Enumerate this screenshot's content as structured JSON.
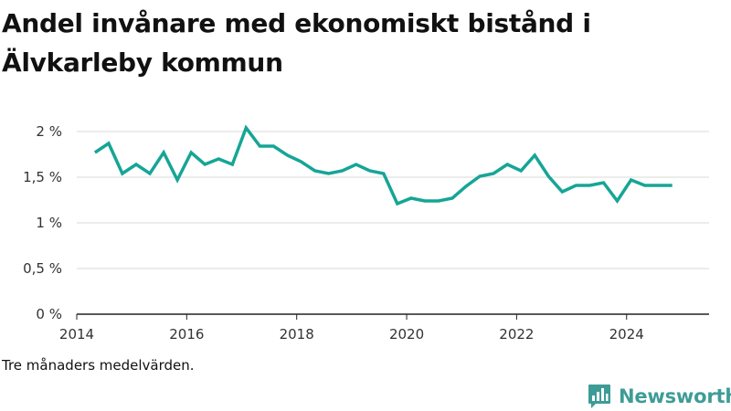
{
  "title": "Andel invånare med ekonomiskt bistånd i Älvkarleby kommun",
  "note": "Tre månaders medelvärden.",
  "brand": {
    "name": "Newsworthy",
    "color": "#3e9c96",
    "icon": "bar-chart-icon"
  },
  "colors": {
    "line": "#16a596",
    "grid": "#d9d9d9",
    "axis": "#222222"
  },
  "chart_data": {
    "type": "line",
    "title": "Andel invånare med ekonomiskt bistånd i Älvkarleby kommun",
    "xlabel": "",
    "ylabel": "",
    "xlim": [
      2014.0,
      2025.5
    ],
    "ylim": [
      0,
      2.0
    ],
    "grid": true,
    "x_ticks": [
      {
        "value": 2014,
        "label": "2014"
      },
      {
        "value": 2016,
        "label": "2016"
      },
      {
        "value": 2018,
        "label": "2018"
      },
      {
        "value": 2020,
        "label": "2020"
      },
      {
        "value": 2022,
        "label": "2022"
      },
      {
        "value": 2024,
        "label": "2024"
      }
    ],
    "y_ticks": [
      {
        "value": 0,
        "label": "0 %"
      },
      {
        "value": 0.5,
        "label": "0,5 %"
      },
      {
        "value": 1.0,
        "label": "1 %"
      },
      {
        "value": 1.5,
        "label": "1,5 %"
      },
      {
        "value": 2.0,
        "label": "2 %"
      }
    ],
    "series": [
      {
        "name": "Andel invånare med ekonomiskt bistånd",
        "x": [
          2014.33,
          2014.58,
          2014.83,
          2015.08,
          2015.33,
          2015.58,
          2015.83,
          2016.08,
          2016.33,
          2016.58,
          2016.83,
          2017.08,
          2017.33,
          2017.58,
          2017.83,
          2018.08,
          2018.33,
          2018.58,
          2018.83,
          2019.08,
          2019.33,
          2019.58,
          2019.83,
          2020.08,
          2020.33,
          2020.58,
          2020.83,
          2021.08,
          2021.33,
          2021.58,
          2021.83,
          2022.08,
          2022.33,
          2022.58,
          2022.83,
          2023.08,
          2023.33,
          2023.58,
          2023.83,
          2024.08,
          2024.33,
          2024.58,
          2024.83
        ],
        "values": [
          1.77,
          1.87,
          1.54,
          1.64,
          1.54,
          1.77,
          1.47,
          1.77,
          1.64,
          1.7,
          1.64,
          2.04,
          1.84,
          1.84,
          1.74,
          1.67,
          1.57,
          1.54,
          1.57,
          1.64,
          1.57,
          1.54,
          1.21,
          1.27,
          1.24,
          1.24,
          1.27,
          1.4,
          1.51,
          1.54,
          1.64,
          1.57,
          1.74,
          1.51,
          1.34,
          1.41,
          1.41,
          1.44,
          1.24,
          1.47,
          1.41,
          1.41,
          1.41
        ]
      }
    ]
  }
}
